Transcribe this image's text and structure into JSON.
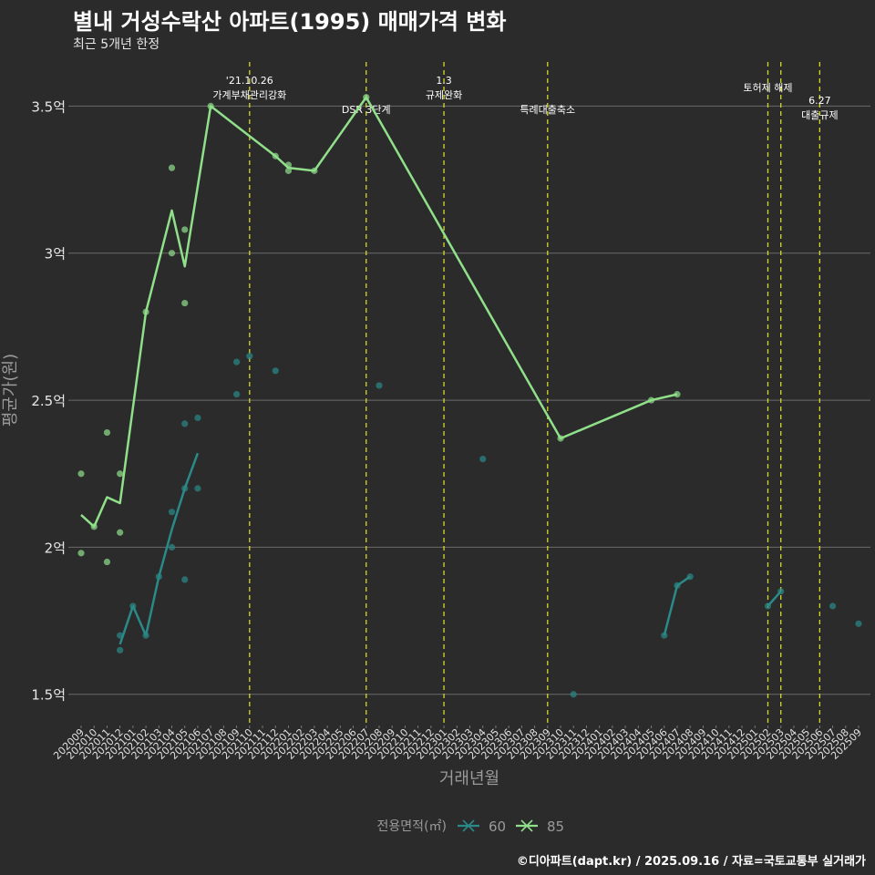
{
  "title": "별내 거성수락산 아파트(1995) 매매가격 변화",
  "subtitle": "최근 5개년 한정",
  "caption": "©디아파트(dapt.kr) / 2025.09.16 / 자료=국토교통부 실거래가",
  "chart_data": {
    "type": "line",
    "xlabel": "거래년월",
    "ylabel": "평균가(원)",
    "ylim": [
      1.4,
      3.65
    ],
    "y_ticks": [
      {
        "value": 1.5,
        "label": "1.5억"
      },
      {
        "value": 2.0,
        "label": "2억"
      },
      {
        "value": 2.5,
        "label": "2.5억"
      },
      {
        "value": 3.0,
        "label": "3억"
      },
      {
        "value": 3.5,
        "label": "3.5억"
      }
    ],
    "categories": [
      "202009",
      "202010",
      "202011",
      "202012",
      "202101",
      "202102",
      "202103",
      "202104",
      "202105",
      "202106",
      "202107",
      "202108",
      "202109",
      "202110",
      "202111",
      "202112",
      "202201",
      "202202",
      "202203",
      "202204",
      "202205",
      "202206",
      "202207",
      "202208",
      "202209",
      "202210",
      "202211",
      "202212",
      "202301",
      "202302",
      "202303",
      "202304",
      "202305",
      "202306",
      "202307",
      "202308",
      "202309",
      "202310",
      "202311",
      "202312",
      "202401",
      "202402",
      "202403",
      "202404",
      "202405",
      "202406",
      "202407",
      "202408",
      "202409",
      "202410",
      "202411",
      "202412",
      "202501",
      "202502",
      "202503",
      "202504",
      "202505",
      "202506",
      "202507",
      "202508",
      "202509"
    ],
    "legend_title": "전용면적(㎡)",
    "legend_position": "bottom",
    "series": [
      {
        "name": "60",
        "color": "#2a8a88",
        "line": [
          {
            "x": "202012",
            "y": 1.67
          },
          {
            "x": "202101",
            "y": 1.8
          },
          {
            "x": "202102",
            "y": 1.7
          },
          {
            "x": "202103",
            "y": 1.9
          },
          {
            "x": "202104",
            "y": 2.06
          },
          {
            "x": "202105",
            "y": 2.2
          },
          {
            "x": "202106",
            "y": 2.32
          }
        ],
        "line2": [
          {
            "x": "202406",
            "y": 1.7
          },
          {
            "x": "202407",
            "y": 1.87
          },
          {
            "x": "202408",
            "y": 1.9
          }
        ],
        "line3": [
          {
            "x": "202502",
            "y": 1.8
          },
          {
            "x": "202503",
            "y": 1.85
          }
        ],
        "points": [
          {
            "x": "202012",
            "y": 1.7
          },
          {
            "x": "202012",
            "y": 1.65
          },
          {
            "x": "202101",
            "y": 1.8
          },
          {
            "x": "202102",
            "y": 1.7
          },
          {
            "x": "202103",
            "y": 1.9
          },
          {
            "x": "202104",
            "y": 2.12
          },
          {
            "x": "202104",
            "y": 2.0
          },
          {
            "x": "202105",
            "y": 2.42
          },
          {
            "x": "202105",
            "y": 2.2
          },
          {
            "x": "202105",
            "y": 1.89
          },
          {
            "x": "202106",
            "y": 2.44
          },
          {
            "x": "202106",
            "y": 2.2
          },
          {
            "x": "202109",
            "y": 2.63
          },
          {
            "x": "202109",
            "y": 2.52
          },
          {
            "x": "202110",
            "y": 2.65
          },
          {
            "x": "202112",
            "y": 2.6
          },
          {
            "x": "202208",
            "y": 2.55
          },
          {
            "x": "202304",
            "y": 2.3
          },
          {
            "x": "202311",
            "y": 1.5
          },
          {
            "x": "202406",
            "y": 1.7
          },
          {
            "x": "202407",
            "y": 1.87
          },
          {
            "x": "202408",
            "y": 1.9
          },
          {
            "x": "202502",
            "y": 1.8
          },
          {
            "x": "202503",
            "y": 1.85
          },
          {
            "x": "202507",
            "y": 1.8
          },
          {
            "x": "202509",
            "y": 1.74
          }
        ]
      },
      {
        "name": "85",
        "color": "#90e08a",
        "line": [
          {
            "x": "202009",
            "y": 2.11
          },
          {
            "x": "202010",
            "y": 2.07
          },
          {
            "x": "202011",
            "y": 2.17
          },
          {
            "x": "202012",
            "y": 2.15
          },
          {
            "x": "202102",
            "y": 2.8
          },
          {
            "x": "202104",
            "y": 3.145
          },
          {
            "x": "202105",
            "y": 2.955
          },
          {
            "x": "202107",
            "y": 3.5
          },
          {
            "x": "202112",
            "y": 3.33
          },
          {
            "x": "202201",
            "y": 3.29
          },
          {
            "x": "202203",
            "y": 3.28
          },
          {
            "x": "202207",
            "y": 3.53
          },
          {
            "x": "202310",
            "y": 2.37
          },
          {
            "x": "202405",
            "y": 2.5
          },
          {
            "x": "202407",
            "y": 2.52
          }
        ],
        "points": [
          {
            "x": "202009",
            "y": 2.25
          },
          {
            "x": "202009",
            "y": 1.98
          },
          {
            "x": "202010",
            "y": 2.07
          },
          {
            "x": "202011",
            "y": 2.39
          },
          {
            "x": "202011",
            "y": 1.95
          },
          {
            "x": "202012",
            "y": 2.25
          },
          {
            "x": "202012",
            "y": 2.05
          },
          {
            "x": "202102",
            "y": 2.8
          },
          {
            "x": "202104",
            "y": 3.29
          },
          {
            "x": "202104",
            "y": 3.0
          },
          {
            "x": "202105",
            "y": 3.08
          },
          {
            "x": "202105",
            "y": 2.83
          },
          {
            "x": "202107",
            "y": 3.5
          },
          {
            "x": "202112",
            "y": 3.33
          },
          {
            "x": "202201",
            "y": 3.3
          },
          {
            "x": "202201",
            "y": 3.28
          },
          {
            "x": "202203",
            "y": 3.28
          },
          {
            "x": "202207",
            "y": 3.53
          },
          {
            "x": "202310",
            "y": 2.37
          },
          {
            "x": "202405",
            "y": 2.5
          },
          {
            "x": "202407",
            "y": 2.52
          }
        ]
      }
    ],
    "annotations": [
      {
        "x": "202110",
        "lines": [
          "'21.10.26",
          "가계부채관리강화"
        ],
        "row": 0
      },
      {
        "x": "202207",
        "lines": [
          "DSR 3단계"
        ],
        "row": 2
      },
      {
        "x": "202301",
        "lines": [
          "1.3",
          "규제완화"
        ],
        "row": 0
      },
      {
        "x": "202309",
        "lines": [
          "특례대출축소"
        ],
        "row": 2
      },
      {
        "x": "202502",
        "lines": [
          "토허제 해제"
        ],
        "row": 1
      },
      {
        "x": "202503",
        "lines": [],
        "row": 1
      },
      {
        "x": "202506",
        "lines": [
          "6.27",
          "대출규제"
        ],
        "row": 3
      }
    ]
  }
}
